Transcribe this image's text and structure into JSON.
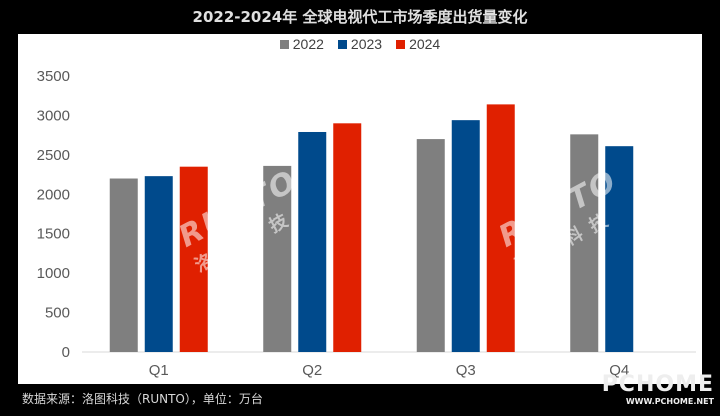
{
  "chart_data": {
    "type": "bar",
    "title": "2022-2024年 全球电视代工市场季度出货量变化",
    "categories": [
      "Q1",
      "Q2",
      "Q3",
      "Q4"
    ],
    "series": [
      {
        "name": "2022",
        "color": "#7f7f7f",
        "values": [
          2200,
          2360,
          2700,
          2760
        ]
      },
      {
        "name": "2023",
        "color": "#004a8c",
        "values": [
          2230,
          2790,
          2940,
          2610
        ]
      },
      {
        "name": "2024",
        "color": "#e02000",
        "values": [
          2350,
          2900,
          3140,
          null
        ]
      }
    ],
    "ylim": [
      0,
      3500
    ],
    "yticks": [
      0,
      500,
      1000,
      1500,
      2000,
      2500,
      3000,
      3500
    ],
    "xlabel": "",
    "ylabel": "",
    "grid": false,
    "legend_position": "top-center"
  },
  "source_note": "数据来源：洛图科技（RUNTO），单位：万台",
  "watermarks": [
    {
      "main": "RUNTO",
      "sub": "洛图科技"
    },
    {
      "main": "RUNTO",
      "sub": "洛图科技"
    }
  ],
  "site_logo": {
    "main": "PCHOME",
    "sub": "WWW.PCHOME.NET"
  }
}
